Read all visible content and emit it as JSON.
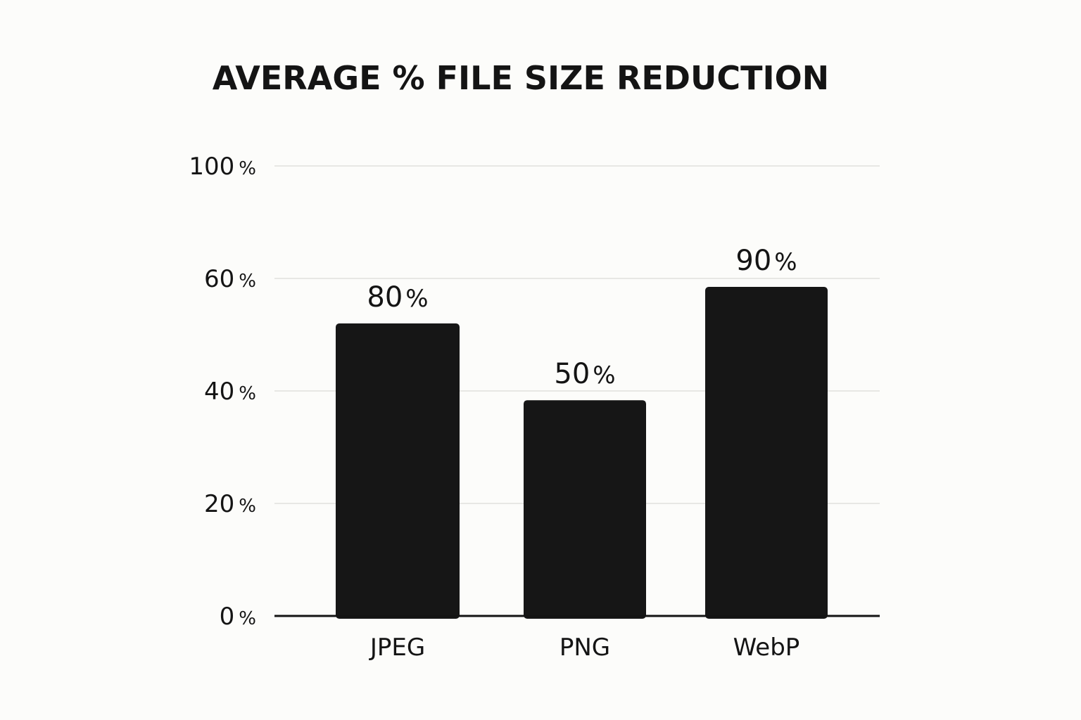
{
  "chart_data": {
    "type": "bar",
    "title": "AVERAGE % FILE SIZE REDUCTION",
    "xlabel": "",
    "ylabel": "",
    "categories": [
      "JPEG",
      "PNG",
      "WebP"
    ],
    "values": [
      80,
      50,
      90
    ],
    "data_labels": [
      "80%",
      "50%",
      "90%"
    ],
    "y_ticks": [
      0,
      20,
      40,
      60,
      100
    ],
    "y_tick_labels": [
      "0%",
      "20%",
      "40%",
      "60%",
      "100%"
    ],
    "ylim": [
      0,
      100
    ],
    "grid": true,
    "legend": "none",
    "colors": {
      "bar": "#161616",
      "text": "#141414",
      "grid": "#e0e0dc",
      "axis": "#141414",
      "background": "#fcfcfa"
    }
  }
}
